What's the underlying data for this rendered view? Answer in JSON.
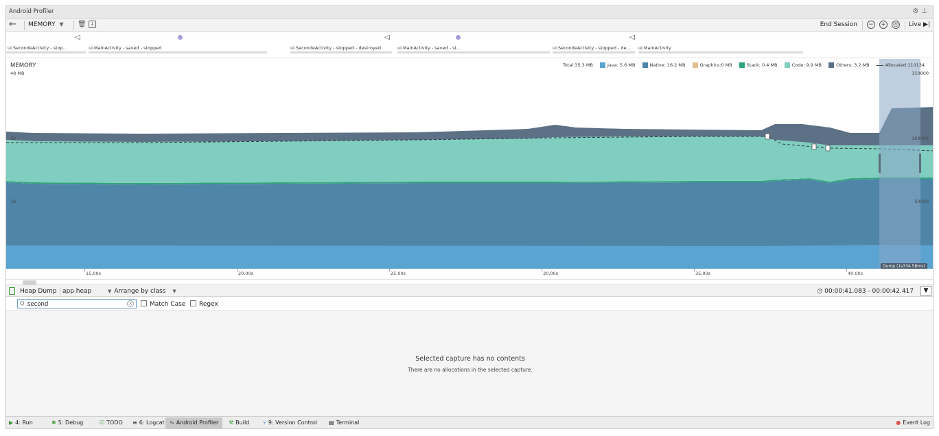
{
  "window": {
    "title": "Android Profiler"
  },
  "toolbar": {
    "profiler": "MEMORY",
    "end_session": "End Session",
    "live": "Live"
  },
  "events": [
    {
      "label": "ui.SecondeActivity - stop..."
    },
    {
      "label": "ui.MainActivity - saved - stopped"
    },
    {
      "label": "ui.SecondeActivity - stopped - destroyed"
    },
    {
      "label": "ui.MainActivity - saved - st..."
    },
    {
      "label": "ui.SecondeActivity - stopped - de..."
    },
    {
      "label": "ui.MainActivity"
    }
  ],
  "memory": {
    "title": "MEMORY",
    "y_left_ticks": [
      "48 MB",
      "32",
      "16"
    ],
    "y_right_ticks": [
      "150000",
      "100000",
      "50000"
    ],
    "legend": {
      "total": "Total:35.3 MB",
      "java": "Java: 5.6 MB",
      "native": "Native: 16.2 MB",
      "graphics": "Graphics:0 MB",
      "stack": "Stack: 0.4 MB",
      "code": "Code: 9.9 MB",
      "others": "Others: 3.2 MB",
      "allocated": "Allocated:110134"
    },
    "colors": {
      "java": "#5ba3d0",
      "native": "#4f86a8",
      "graphics": "#e3bf8e",
      "stack": "#2fa57a",
      "code": "#80cebf",
      "others": "#5c7186"
    },
    "dump_label": "Dump (1s334.58ms)"
  },
  "timeline": {
    "labels": [
      "15.00s",
      "20.00s",
      "25.00s",
      "30.00s",
      "35.00s",
      "40.00s"
    ]
  },
  "heap": {
    "heap_dump": "Heap Dump",
    "heap_select": "app heap",
    "arrange": "Arrange by class",
    "time_range": "00:00:41.083 - 00:00:42.417"
  },
  "search": {
    "value": "second",
    "match_case": "Match Case",
    "regex": "Regex"
  },
  "empty": {
    "title": "Selected capture has no contents",
    "subtitle": "There are no allocations in the selected capture."
  },
  "tool_windows": {
    "run": "4: Run",
    "debug": "5: Debug",
    "todo": "TODO",
    "logcat": "6: Logcat",
    "profiler": "Android Profiler",
    "build": "Build",
    "vcs": "9: Version Control",
    "terminal": "Terminal",
    "event_log": "Event Log"
  }
}
